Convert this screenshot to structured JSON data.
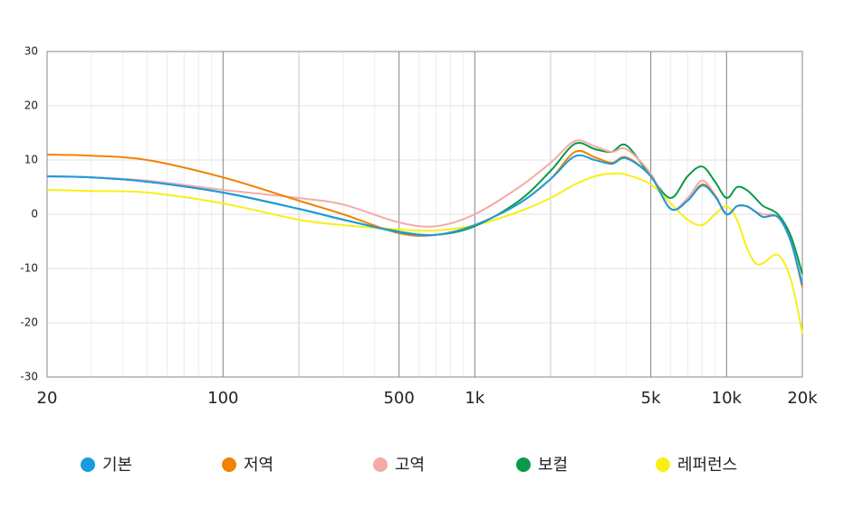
{
  "chart_data": {
    "type": "line",
    "xscale": "log",
    "xlim": [
      20,
      20000
    ],
    "ylim": [
      -30,
      30
    ],
    "xticks": [
      20,
      100,
      500,
      {
        "value": 1000,
        "label": "1k"
      },
      {
        "value": 5000,
        "label": "5k"
      },
      {
        "value": 10000,
        "label": "10k"
      },
      {
        "value": 20000,
        "label": "20k"
      }
    ],
    "yticks": [
      -30,
      -20,
      -10,
      0,
      10,
      20,
      30
    ],
    "grid": true,
    "x": [
      20,
      30,
      50,
      100,
      200,
      300,
      500,
      700,
      1000,
      1500,
      2000,
      2500,
      3000,
      3500,
      4000,
      5000,
      6000,
      7000,
      8000,
      9000,
      10000,
      11000,
      12000,
      13000,
      14000,
      16000,
      18000,
      20000
    ],
    "series": [
      {
        "name": "기본",
        "color": "#1a9be0",
        "values": [
          7,
          6.8,
          6,
          4,
          1,
          -1,
          -3.3,
          -3.8,
          -2,
          2,
          6.5,
          10.7,
          10,
          9.3,
          10.3,
          7,
          1,
          2.5,
          5.3,
          3.3,
          0,
          1.5,
          1.5,
          0.5,
          -0.5,
          -0.5,
          -5,
          -13
        ]
      },
      {
        "name": "저역",
        "color": "#f08300",
        "values": [
          11,
          10.8,
          10,
          6.8,
          2.5,
          0,
          -3.5,
          -3.8,
          -2,
          2,
          6.5,
          11.5,
          10.5,
          9.5,
          10.5,
          7,
          1,
          2.5,
          5.5,
          3.5,
          0,
          1.5,
          1.5,
          0.5,
          -0.5,
          -0.5,
          -5,
          -13.5
        ]
      },
      {
        "name": "고역",
        "color": "#f5aaa8",
        "values": [
          7,
          6.8,
          6.2,
          4.5,
          3,
          1.8,
          -1.5,
          -2.2,
          0,
          5,
          9.5,
          13.5,
          12.5,
          11.5,
          12,
          7.5,
          1,
          3,
          6.2,
          3.5,
          0,
          1.5,
          1.5,
          0.5,
          0,
          -0.5,
          -5,
          -13
        ]
      },
      {
        "name": "보컬",
        "color": "#0a9a48",
        "values": [
          7,
          6.8,
          6,
          4,
          1,
          -1,
          -3.2,
          -3.8,
          -2.2,
          2.5,
          8,
          13,
          12,
          11.5,
          12.7,
          7,
          3,
          7,
          8.8,
          6,
          3,
          5,
          4.5,
          3,
          1.5,
          0,
          -4,
          -11
        ]
      },
      {
        "name": "레퍼런스",
        "color": "#f7f016",
        "values": [
          4.5,
          4.3,
          4,
          2,
          -1,
          -2,
          -2.8,
          -3,
          -2,
          0.5,
          3,
          5.5,
          7,
          7.5,
          7.3,
          5.5,
          2,
          -1,
          -2,
          0,
          1.5,
          -1,
          -6,
          -9,
          -9,
          -7.5,
          -12,
          -22
        ]
      }
    ]
  }
}
